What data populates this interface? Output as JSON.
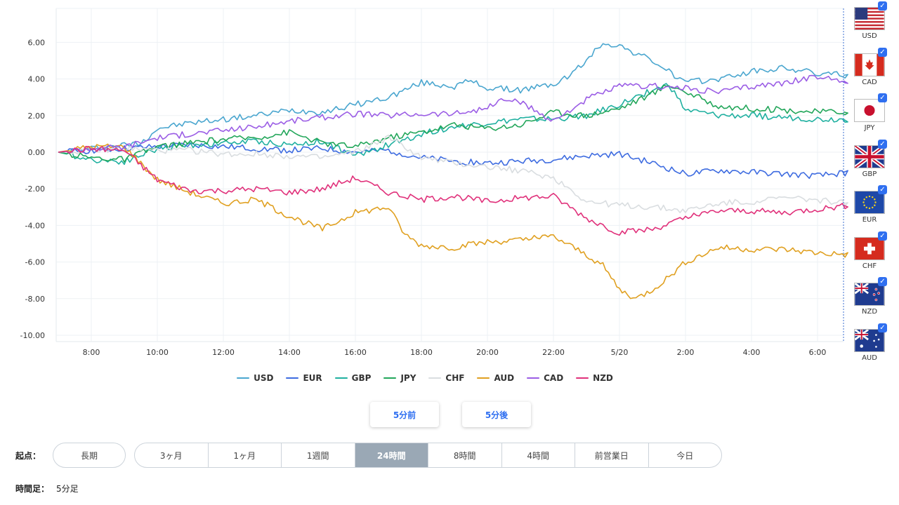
{
  "chart_data": {
    "type": "line",
    "x_tick_labels": [
      "8:00",
      "10:00",
      "12:00",
      "14:00",
      "16:00",
      "18:00",
      "20:00",
      "22:00",
      "5/20",
      "2:00",
      "4:00",
      "6:00"
    ],
    "y_tick_labels": [
      "6.00",
      "4.00",
      "2.00",
      "0.00",
      "-2.00",
      "-4.00",
      "-6.00",
      "-8.00",
      "-10.00"
    ],
    "ylim": [
      -10,
      7.8
    ],
    "xlim": [
      7,
      31
    ],
    "grid": true,
    "legend_position": "bottom",
    "series": [
      {
        "name": "USD",
        "color": "#4aa6cf",
        "points": [
          [
            7,
            0
          ],
          [
            8,
            0.2
          ],
          [
            9,
            0.4
          ],
          [
            9.5,
            0.5
          ],
          [
            10,
            1.3
          ],
          [
            11,
            1.6
          ],
          [
            12,
            1.8
          ],
          [
            13,
            2.0
          ],
          [
            14,
            2.3
          ],
          [
            15,
            2.2
          ],
          [
            16,
            2.6
          ],
          [
            17,
            3.0
          ],
          [
            18,
            3.8
          ],
          [
            19,
            3.6
          ],
          [
            19.5,
            3.9
          ],
          [
            20,
            3.5
          ],
          [
            21,
            3.4
          ],
          [
            22,
            3.7
          ],
          [
            22.5,
            4.2
          ],
          [
            23,
            5.0
          ],
          [
            23.5,
            6.0
          ],
          [
            24,
            5.8
          ],
          [
            25,
            5.0
          ],
          [
            25.5,
            4.4
          ],
          [
            26,
            3.8
          ],
          [
            27,
            4.0
          ],
          [
            28,
            4.4
          ],
          [
            29,
            4.6
          ],
          [
            30,
            4.3
          ],
          [
            31,
            4.2
          ]
        ]
      },
      {
        "name": "EUR",
        "color": "#3d6be0",
        "points": [
          [
            7,
            0
          ],
          [
            8,
            0.1
          ],
          [
            9,
            0.2
          ],
          [
            10,
            0.3
          ],
          [
            11,
            0.4
          ],
          [
            12,
            0.3
          ],
          [
            13,
            0.2
          ],
          [
            14,
            0.1
          ],
          [
            15,
            0.2
          ],
          [
            16,
            0.0
          ],
          [
            17,
            0.1
          ],
          [
            18,
            -0.3
          ],
          [
            19,
            -0.5
          ],
          [
            20,
            -0.6
          ],
          [
            21,
            -0.5
          ],
          [
            22,
            -0.4
          ],
          [
            23,
            -0.2
          ],
          [
            24,
            -0.1
          ],
          [
            25,
            -0.6
          ],
          [
            26,
            -1.2
          ],
          [
            27,
            -1.0
          ],
          [
            28,
            -1.1
          ],
          [
            29,
            -1.2
          ],
          [
            30,
            -1.3
          ],
          [
            31,
            -1.1
          ]
        ]
      },
      {
        "name": "GBP",
        "color": "#1fb0a0",
        "points": [
          [
            7,
            0
          ],
          [
            8,
            -0.4
          ],
          [
            9,
            -0.5
          ],
          [
            10,
            0.2
          ],
          [
            11,
            0.4
          ],
          [
            12,
            0.5
          ],
          [
            13,
            0.6
          ],
          [
            14,
            0.4
          ],
          [
            15,
            0.6
          ],
          [
            16,
            -0.2
          ],
          [
            17,
            0.4
          ],
          [
            18,
            1.0
          ],
          [
            19,
            1.4
          ],
          [
            20,
            1.6
          ],
          [
            21,
            1.8
          ],
          [
            22,
            1.8
          ],
          [
            23,
            2.0
          ],
          [
            24,
            2.6
          ],
          [
            25,
            3.4
          ],
          [
            25.5,
            3.7
          ],
          [
            26,
            2.3
          ],
          [
            27,
            2.0
          ],
          [
            28,
            2.0
          ],
          [
            29,
            1.9
          ],
          [
            30,
            1.8
          ],
          [
            31,
            1.8
          ]
        ]
      },
      {
        "name": "JPY",
        "color": "#22a65a",
        "points": [
          [
            7,
            0
          ],
          [
            8,
            -0.3
          ],
          [
            9,
            -0.4
          ],
          [
            10,
            0.3
          ],
          [
            11,
            0.5
          ],
          [
            12,
            0.7
          ],
          [
            13,
            0.8
          ],
          [
            14,
            1.1
          ],
          [
            15,
            0.5
          ],
          [
            16,
            0.3
          ],
          [
            17,
            0.8
          ],
          [
            18,
            1.1
          ],
          [
            19,
            1.5
          ],
          [
            20,
            1.3
          ],
          [
            21,
            1.5
          ],
          [
            22,
            2.2
          ],
          [
            23,
            2.0
          ],
          [
            24,
            2.4
          ],
          [
            25,
            3.2
          ],
          [
            25.5,
            3.7
          ],
          [
            26,
            3.3
          ],
          [
            27,
            2.5
          ],
          [
            28,
            2.4
          ],
          [
            29,
            2.3
          ],
          [
            30,
            2.2
          ],
          [
            31,
            2.2
          ]
        ]
      },
      {
        "name": "CHF",
        "color": "#d9dde0",
        "points": [
          [
            7,
            0
          ],
          [
            8,
            0.1
          ],
          [
            9,
            0.2
          ],
          [
            10,
            0.1
          ],
          [
            11,
            0.1
          ],
          [
            12,
            -0.1
          ],
          [
            13,
            -0.1
          ],
          [
            14,
            -0.2
          ],
          [
            15,
            -0.3
          ],
          [
            16,
            0.0
          ],
          [
            17,
            0.8
          ],
          [
            17.5,
            0.3
          ],
          [
            18,
            -0.3
          ],
          [
            19,
            -0.6
          ],
          [
            20,
            -0.8
          ],
          [
            21,
            -1.0
          ],
          [
            22,
            -1.4
          ],
          [
            22.5,
            -2.0
          ],
          [
            23,
            -2.7
          ],
          [
            24,
            -2.9
          ],
          [
            25,
            -3.0
          ],
          [
            26,
            -3.2
          ],
          [
            27,
            -2.8
          ],
          [
            28,
            -2.7
          ],
          [
            29,
            -2.5
          ],
          [
            30,
            -2.6
          ],
          [
            31,
            -2.8
          ]
        ]
      },
      {
        "name": "AUD",
        "color": "#e0a020",
        "points": [
          [
            7,
            0
          ],
          [
            8,
            0.3
          ],
          [
            9,
            0.3
          ],
          [
            10,
            -1.5
          ],
          [
            11,
            -2.2
          ],
          [
            12,
            -2.8
          ],
          [
            13,
            -2.6
          ],
          [
            14,
            -3.5
          ],
          [
            15,
            -4.2
          ],
          [
            16,
            -3.3
          ],
          [
            17,
            -3.0
          ],
          [
            17.5,
            -4.5
          ],
          [
            18,
            -5.1
          ],
          [
            19,
            -5.2
          ],
          [
            20,
            -4.9
          ],
          [
            21,
            -4.8
          ],
          [
            22,
            -4.6
          ],
          [
            23,
            -5.6
          ],
          [
            23.5,
            -6.2
          ],
          [
            24,
            -7.5
          ],
          [
            24.5,
            -8.0
          ],
          [
            25,
            -7.5
          ],
          [
            25.5,
            -6.8
          ],
          [
            26,
            -6.0
          ],
          [
            27,
            -5.2
          ],
          [
            28,
            -5.3
          ],
          [
            29,
            -5.3
          ],
          [
            30,
            -5.5
          ],
          [
            31,
            -5.6
          ]
        ]
      },
      {
        "name": "CAD",
        "color": "#9b5de5",
        "points": [
          [
            7,
            0
          ],
          [
            8,
            0.2
          ],
          [
            9,
            0.3
          ],
          [
            10,
            0.8
          ],
          [
            11,
            1.0
          ],
          [
            12,
            1.2
          ],
          [
            13,
            1.4
          ],
          [
            14,
            1.7
          ],
          [
            15,
            1.9
          ],
          [
            16,
            2.1
          ],
          [
            17,
            2.0
          ],
          [
            18,
            2.1
          ],
          [
            19,
            2.1
          ],
          [
            20,
            2.4
          ],
          [
            20.5,
            2.9
          ],
          [
            21,
            2.7
          ],
          [
            22,
            1.7
          ],
          [
            22.5,
            2.3
          ],
          [
            23,
            2.9
          ],
          [
            24,
            3.6
          ],
          [
            25,
            3.6
          ],
          [
            26,
            3.5
          ],
          [
            27,
            3.3
          ],
          [
            28,
            3.6
          ],
          [
            29,
            3.8
          ],
          [
            30,
            4.1
          ],
          [
            31,
            3.9
          ]
        ]
      },
      {
        "name": "NZD",
        "color": "#e0307a",
        "points": [
          [
            7,
            0
          ],
          [
            8,
            0.2
          ],
          [
            9,
            0.1
          ],
          [
            10,
            -1.5
          ],
          [
            11,
            -2.1
          ],
          [
            12,
            -2.1
          ],
          [
            13,
            -2.0
          ],
          [
            14,
            -2.2
          ],
          [
            15,
            -2.0
          ],
          [
            16,
            -1.4
          ],
          [
            17,
            -2.2
          ],
          [
            18,
            -2.6
          ],
          [
            19,
            -2.4
          ],
          [
            20,
            -2.7
          ],
          [
            21,
            -2.5
          ],
          [
            22,
            -2.4
          ],
          [
            23,
            -3.6
          ],
          [
            23.5,
            -4.0
          ],
          [
            24,
            -4.4
          ],
          [
            25,
            -4.2
          ],
          [
            26,
            -3.6
          ],
          [
            27,
            -3.2
          ],
          [
            28,
            -3.2
          ],
          [
            29,
            -3.3
          ],
          [
            30,
            -3.1
          ],
          [
            31,
            -2.9
          ]
        ]
      }
    ]
  },
  "sidebar": {
    "flags": [
      {
        "code": "USD",
        "flag": "us-flag",
        "checked": true
      },
      {
        "code": "CAD",
        "flag": "ca-flag",
        "checked": true
      },
      {
        "code": "JPY",
        "flag": "jp-flag",
        "checked": true
      },
      {
        "code": "GBP",
        "flag": "gb-flag",
        "checked": true
      },
      {
        "code": "EUR",
        "flag": "eu-flag",
        "checked": true
      },
      {
        "code": "CHF",
        "flag": "ch-flag",
        "checked": true
      },
      {
        "code": "NZD",
        "flag": "nz-flag",
        "checked": true
      },
      {
        "code": "AUD",
        "flag": "au-flag",
        "checked": true
      }
    ]
  },
  "legend": [
    "USD",
    "EUR",
    "GBP",
    "JPY",
    "CHF",
    "AUD",
    "CAD",
    "NZD"
  ],
  "nav": {
    "prev_label": "5分前",
    "next_label": "5分後"
  },
  "start": {
    "label": "起点：",
    "long_label": "長期",
    "options": [
      "3ヶ月",
      "1ヶ月",
      "1週間",
      "24時間",
      "8時間",
      "4時間",
      "前営業日",
      "今日"
    ],
    "selected": "24時間"
  },
  "timeframe": {
    "label": "時間足：",
    "value": "5分足"
  },
  "colors": {
    "accent": "#2f6ff0",
    "selected_pill": "#9aa8b5"
  }
}
